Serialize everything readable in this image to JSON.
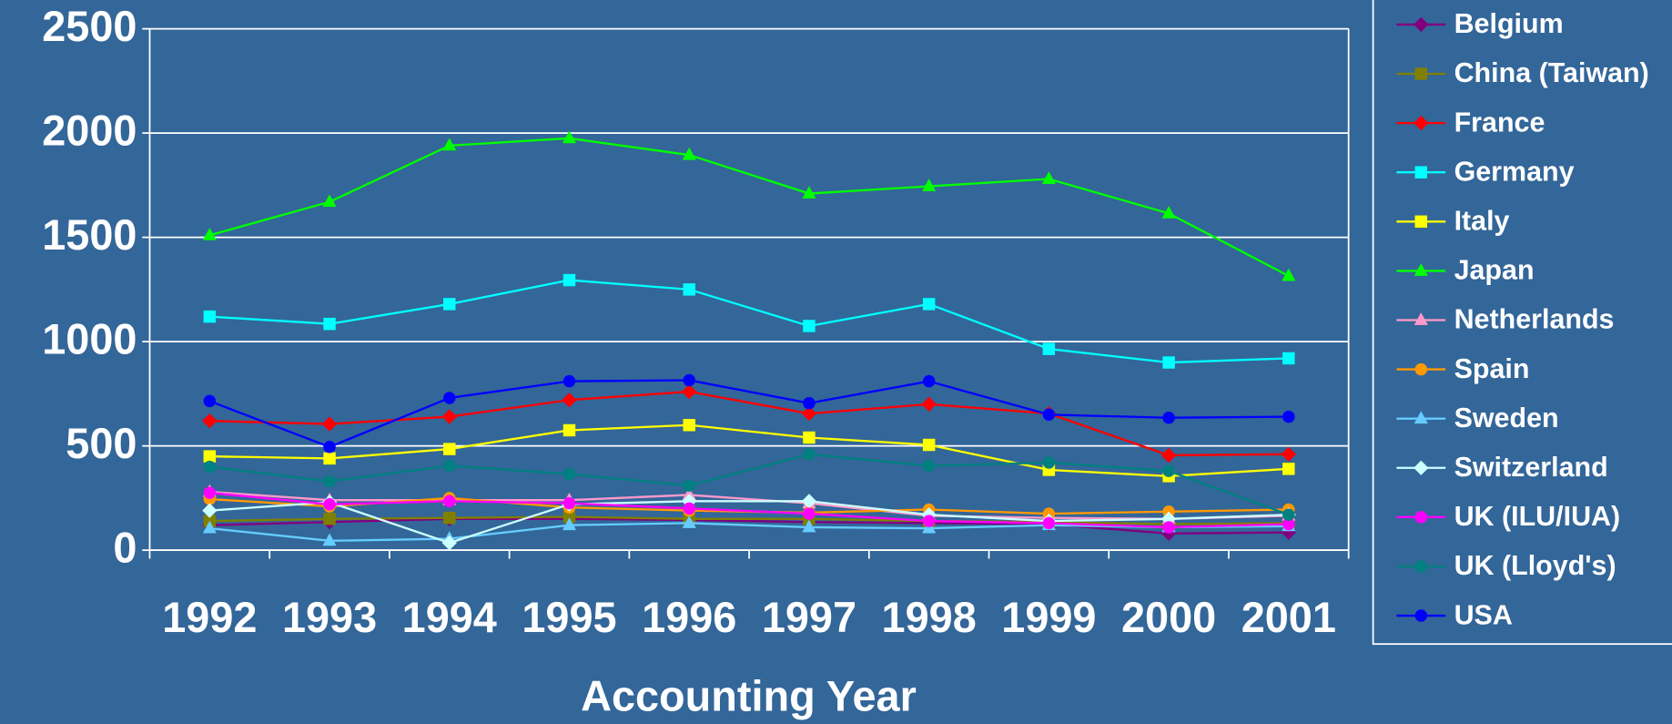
{
  "chart_data": {
    "type": "line",
    "x_label": "Accounting Year",
    "categories": [
      "1992",
      "1993",
      "1994",
      "1995",
      "1996",
      "1997",
      "1998",
      "1999",
      "2000",
      "2001"
    ],
    "ylim": [
      0,
      2500
    ],
    "yticks": [
      0,
      500,
      1000,
      1500,
      2000,
      2500
    ],
    "grid": true,
    "legend": "right",
    "series": [
      {
        "name": "Belgium",
        "color": "#800080",
        "marker": "diamond",
        "values": [
          120,
          135,
          150,
          150,
          145,
          135,
          130,
          125,
          80,
          85
        ]
      },
      {
        "name": "China (Taiwan)",
        "color": "#808000",
        "marker": "square",
        "values": [
          140,
          150,
          155,
          160,
          150,
          150,
          140,
          135,
          125,
          130
        ]
      },
      {
        "name": "France",
        "color": "#ff0000",
        "marker": "diamond",
        "values": [
          620,
          605,
          640,
          720,
          760,
          655,
          700,
          655,
          455,
          460
        ]
      },
      {
        "name": "Germany",
        "color": "#00ffff",
        "marker": "square",
        "values": [
          1120,
          1085,
          1180,
          1295,
          1250,
          1075,
          1180,
          965,
          900,
          920
        ]
      },
      {
        "name": "Italy",
        "color": "#ffff00",
        "marker": "square",
        "values": [
          450,
          440,
          485,
          575,
          600,
          540,
          505,
          385,
          355,
          390
        ]
      },
      {
        "name": "Japan",
        "color": "#00ff00",
        "marker": "triangle",
        "values": [
          1510,
          1670,
          1940,
          1975,
          1895,
          1710,
          1745,
          1780,
          1615,
          1315
        ]
      },
      {
        "name": "Netherlands",
        "color": "#ff99cc",
        "marker": "triangle",
        "values": [
          280,
          240,
          240,
          240,
          265,
          225,
          165,
          155,
          150,
          165
        ]
      },
      {
        "name": "Spain",
        "color": "#ff9900",
        "marker": "circle",
        "values": [
          245,
          210,
          250,
          205,
          190,
          180,
          195,
          175,
          185,
          195
        ]
      },
      {
        "name": "Sweden",
        "color": "#66ccff",
        "marker": "triangle",
        "values": [
          105,
          45,
          55,
          120,
          130,
          110,
          105,
          120,
          110,
          115
        ]
      },
      {
        "name": "Switzerland",
        "color": "#ccffff",
        "marker": "diamond",
        "values": [
          190,
          230,
          35,
          220,
          235,
          235,
          170,
          140,
          150,
          170
        ]
      },
      {
        "name": "UK (ILU/IUA)",
        "color": "#ff00ff",
        "marker": "circle",
        "values": [
          275,
          220,
          235,
          225,
          200,
          175,
          140,
          130,
          110,
          125
        ]
      },
      {
        "name": "UK (Lloyd's)",
        "color": "#008080",
        "marker": "circle",
        "values": [
          400,
          330,
          405,
          365,
          310,
          460,
          405,
          420,
          380,
          170
        ]
      },
      {
        "name": "USA",
        "color": "#0000ff",
        "marker": "circle",
        "values": [
          715,
          495,
          730,
          810,
          815,
          705,
          810,
          650,
          635,
          640
        ]
      }
    ]
  }
}
